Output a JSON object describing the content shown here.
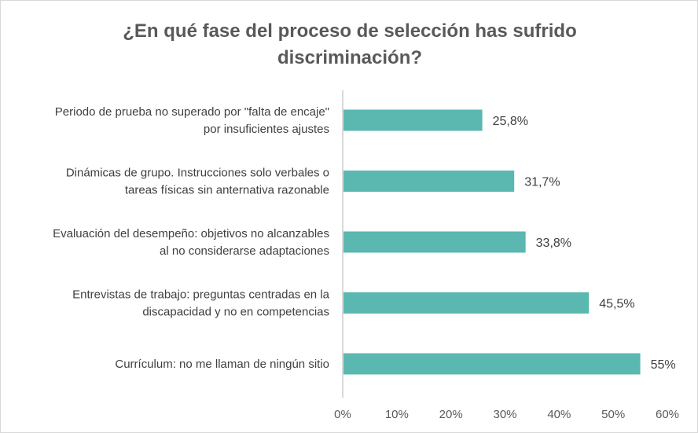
{
  "chart_data": {
    "type": "bar",
    "orientation": "horizontal",
    "title": [
      "¿En qué fase del proceso de selección has sufrido",
      "discriminación?"
    ],
    "categories": [
      [
        "Periodo de prueba no superado por \"falta de encaje\"",
        "por insuficientes ajustes"
      ],
      [
        "Dinámicas de grupo. Instrucciones solo verbales o",
        "tareas físicas sin anternativa razonable"
      ],
      [
        "Evaluación del desempeño: objetivos no alcanzables",
        "al no considerarse adaptaciones"
      ],
      [
        "Entrevistas de trabajo: preguntas centradas en la",
        "discapacidad y no en competencias"
      ],
      [
        "Currículum: no me llaman de ningún sitio"
      ]
    ],
    "values": [
      25.8,
      31.7,
      33.8,
      45.5,
      55
    ],
    "data_labels": [
      "25,8%",
      "31,7%",
      "33,8%",
      "45,5%",
      "55%"
    ],
    "xlim": [
      0,
      60
    ],
    "x_ticks": [
      "0%",
      "10%",
      "20%",
      "30%",
      "40%",
      "50%",
      "60%"
    ],
    "xlabel": "",
    "ylabel": "",
    "grid": false,
    "legend": "none",
    "bar_color": "#5BB8B1"
  }
}
